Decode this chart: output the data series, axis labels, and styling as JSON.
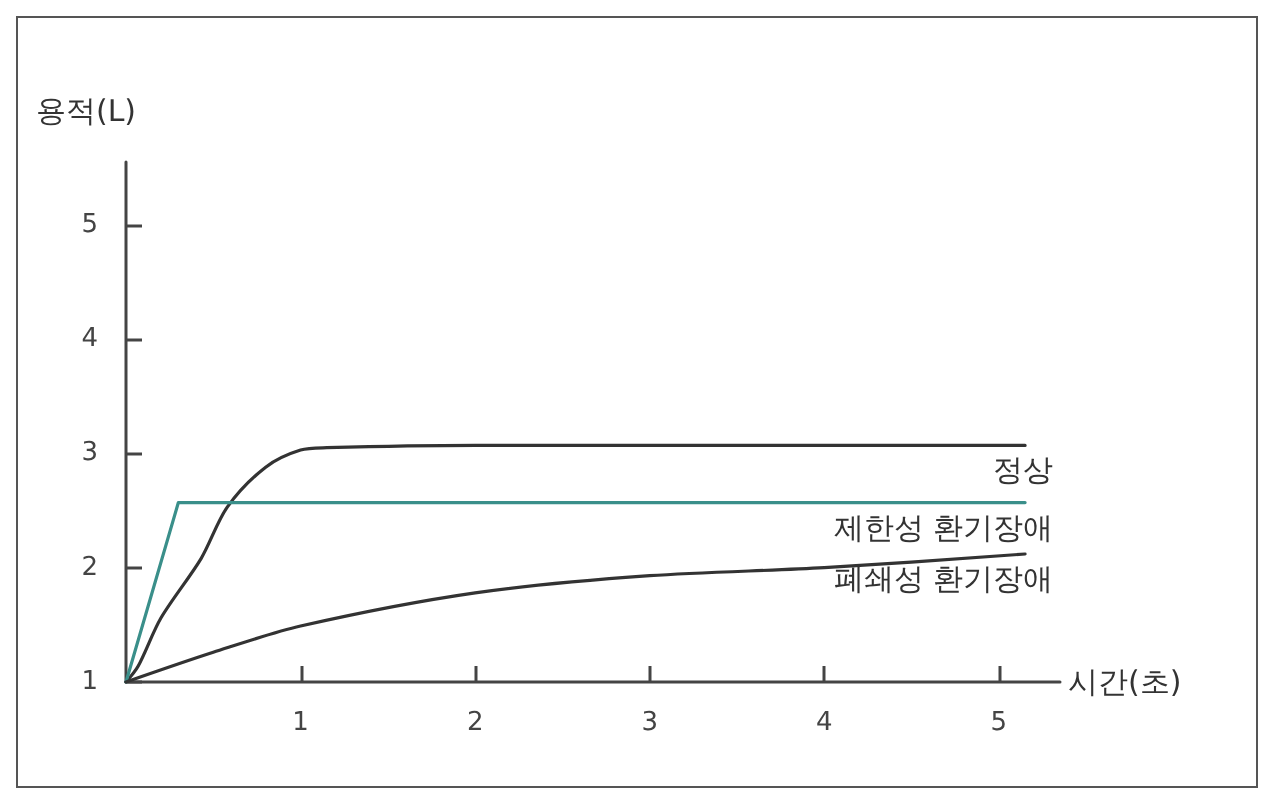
{
  "chart_data": {
    "type": "line",
    "xlabel": "시간(초)",
    "ylabel": "용적(L)",
    "xlim": [
      0,
      5.35
    ],
    "ylim": [
      1,
      5.55
    ],
    "xticks": [
      1,
      2,
      3,
      4,
      5
    ],
    "yticks": [
      1,
      2,
      3,
      4,
      5
    ],
    "grid": false,
    "legend": false,
    "marker": "none",
    "line_style": "solid",
    "series": [
      {
        "name": "정상",
        "color": "#333333",
        "x": [
          0,
          0.07,
          0.2,
          0.43,
          0.58,
          0.8,
          1.0,
          1.15,
          2,
          3,
          4,
          5.15
        ],
        "values": [
          1,
          1.14,
          1.56,
          2.08,
          2.53,
          2.88,
          3.03,
          3.05,
          3.07,
          3.07,
          3.07,
          3.07
        ]
      },
      {
        "name": "제한성 환기장애",
        "color": "#3a8f8a",
        "x": [
          0,
          0.3,
          5.15
        ],
        "values": [
          1,
          2.57,
          2.57
        ]
      },
      {
        "name": "폐쇄성 환기장애",
        "color": "#333333",
        "x": [
          0,
          0.5,
          1,
          2,
          3,
          4,
          5.15
        ],
        "values": [
          1,
          1.26,
          1.49,
          1.78,
          1.93,
          2.0,
          2.12
        ]
      }
    ]
  }
}
